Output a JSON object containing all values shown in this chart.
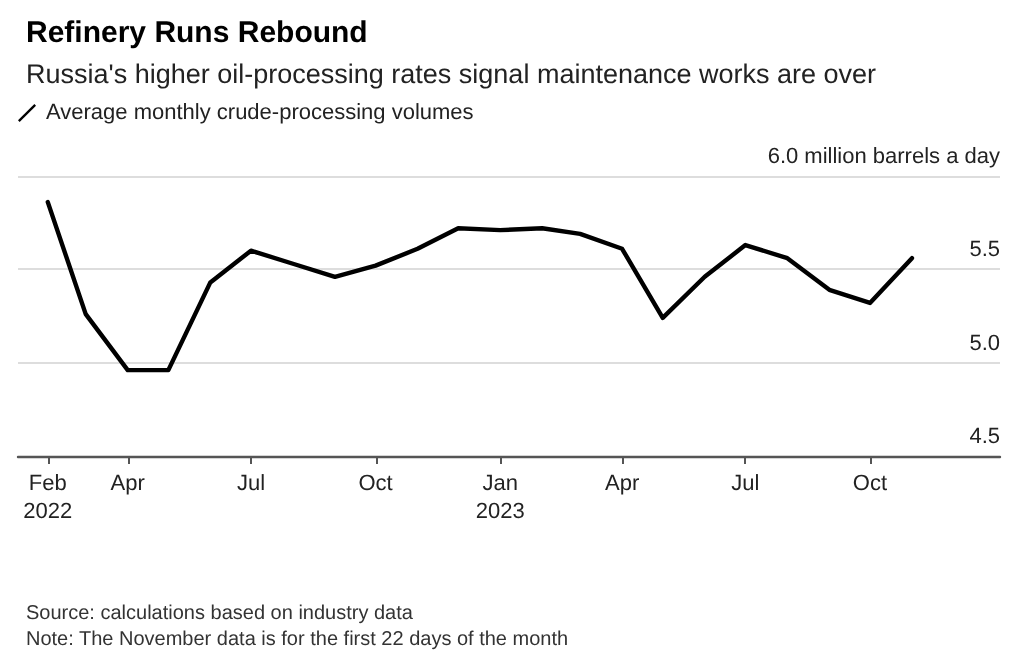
{
  "chart_data": {
    "type": "line",
    "title": "Refinery Runs Rebound",
    "subtitle": "Russia's higher oil-processing rates signal maintenance works are over",
    "x": [
      "2022-02",
      "2022-03",
      "2022-04",
      "2022-05",
      "2022-06",
      "2022-07",
      "2022-08",
      "2022-09",
      "2022-10",
      "2022-11",
      "2022-12",
      "2023-01",
      "2023-02",
      "2023-03",
      "2023-04",
      "2023-05",
      "2023-06",
      "2023-07",
      "2023-08",
      "2023-09",
      "2023-10",
      "2023-11"
    ],
    "series": [
      {
        "name": "Average monthly crude-processing volumes",
        "color": "#000000",
        "values": [
          5.86,
          5.26,
          4.96,
          4.96,
          5.43,
          5.6,
          5.53,
          5.46,
          5.52,
          5.61,
          5.72,
          5.71,
          5.72,
          5.69,
          5.61,
          5.24,
          5.46,
          5.63,
          5.56,
          5.39,
          5.32,
          5.56
        ]
      }
    ],
    "xlim": [
      "2022-01-10",
      "2024-01-05"
    ],
    "xticks": [
      {
        "value": "2022-02",
        "label": "Feb\n2022"
      },
      {
        "value": "2022-04",
        "label": "Apr"
      },
      {
        "value": "2022-07",
        "label": "Jul"
      },
      {
        "value": "2022-10",
        "label": "Oct"
      },
      {
        "value": "2023-01",
        "label": "Jan\n2023"
      },
      {
        "value": "2023-04",
        "label": "Apr"
      },
      {
        "value": "2023-07",
        "label": "Jul"
      },
      {
        "value": "2023-10",
        "label": "Oct"
      }
    ],
    "ylim": [
      4.5,
      6.0
    ],
    "yticks": [
      4.5,
      {
        "value": 5.0,
        "label": "5.0"
      },
      5.5,
      {
        "value": 6.0,
        "label": "6.0 million barrels a day"
      }
    ],
    "grid": "y",
    "legend": "top left",
    "marker": "none",
    "line_style": "solid",
    "annotations": [
      "Source: calculations based on industry data",
      "Note: The November data is for the first 22 days of the month"
    ]
  }
}
